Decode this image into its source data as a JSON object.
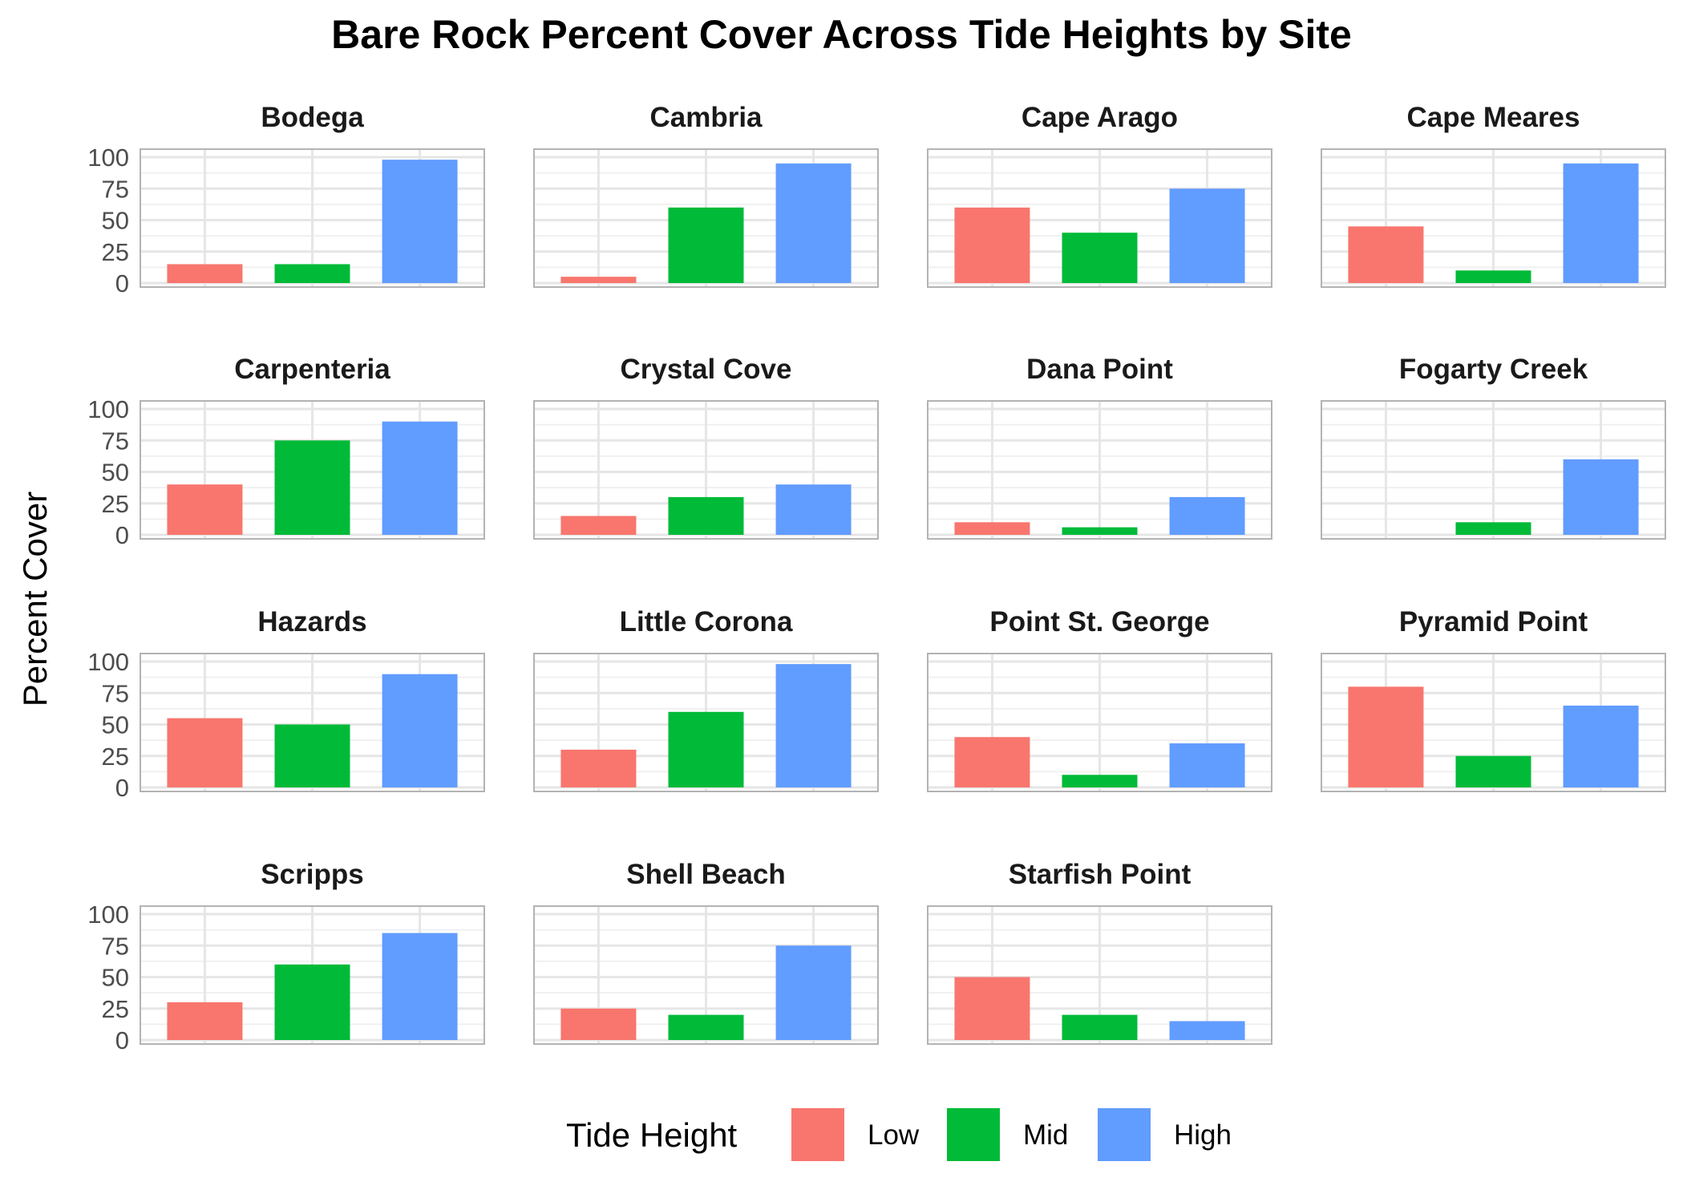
{
  "chart_data": {
    "type": "bar",
    "title": "Bare Rock Percent Cover Across Tide Heights by Site",
    "xlabel": "",
    "ylabel": "Percent Cover",
    "ylim": [
      0,
      100
    ],
    "yticks": [
      "0",
      "25",
      "50",
      "75",
      "100"
    ],
    "grid": true,
    "legend_position": "bottom",
    "legend_title": "Tide Height",
    "categories": [
      "Low",
      "Mid",
      "High"
    ],
    "colors": {
      "Low": "#F8766D",
      "Mid": "#00BA38",
      "High": "#619CFF"
    },
    "facets": [
      {
        "name": "Bodega",
        "values": [
          15,
          15,
          98
        ]
      },
      {
        "name": "Cambria",
        "values": [
          5,
          60,
          95
        ]
      },
      {
        "name": "Cape Arago",
        "values": [
          60,
          40,
          75
        ]
      },
      {
        "name": "Cape Meares",
        "values": [
          45,
          10,
          95
        ]
      },
      {
        "name": "Carpenteria",
        "values": [
          40,
          75,
          90
        ]
      },
      {
        "name": "Crystal Cove",
        "values": [
          15,
          30,
          40
        ]
      },
      {
        "name": "Dana Point",
        "values": [
          10,
          6,
          30
        ]
      },
      {
        "name": "Fogarty Creek",
        "values": [
          null,
          10,
          60
        ]
      },
      {
        "name": "Hazards",
        "values": [
          55,
          50,
          90
        ]
      },
      {
        "name": "Little Corona",
        "values": [
          30,
          60,
          98
        ]
      },
      {
        "name": "Point St. George",
        "values": [
          40,
          10,
          35
        ]
      },
      {
        "name": "Pyramid Point",
        "values": [
          80,
          25,
          65
        ]
      },
      {
        "name": "Scripps",
        "values": [
          30,
          60,
          85
        ]
      },
      {
        "name": "Shell Beach",
        "values": [
          25,
          20,
          75
        ]
      },
      {
        "name": "Starfish Point",
        "values": [
          50,
          20,
          15
        ]
      }
    ]
  }
}
